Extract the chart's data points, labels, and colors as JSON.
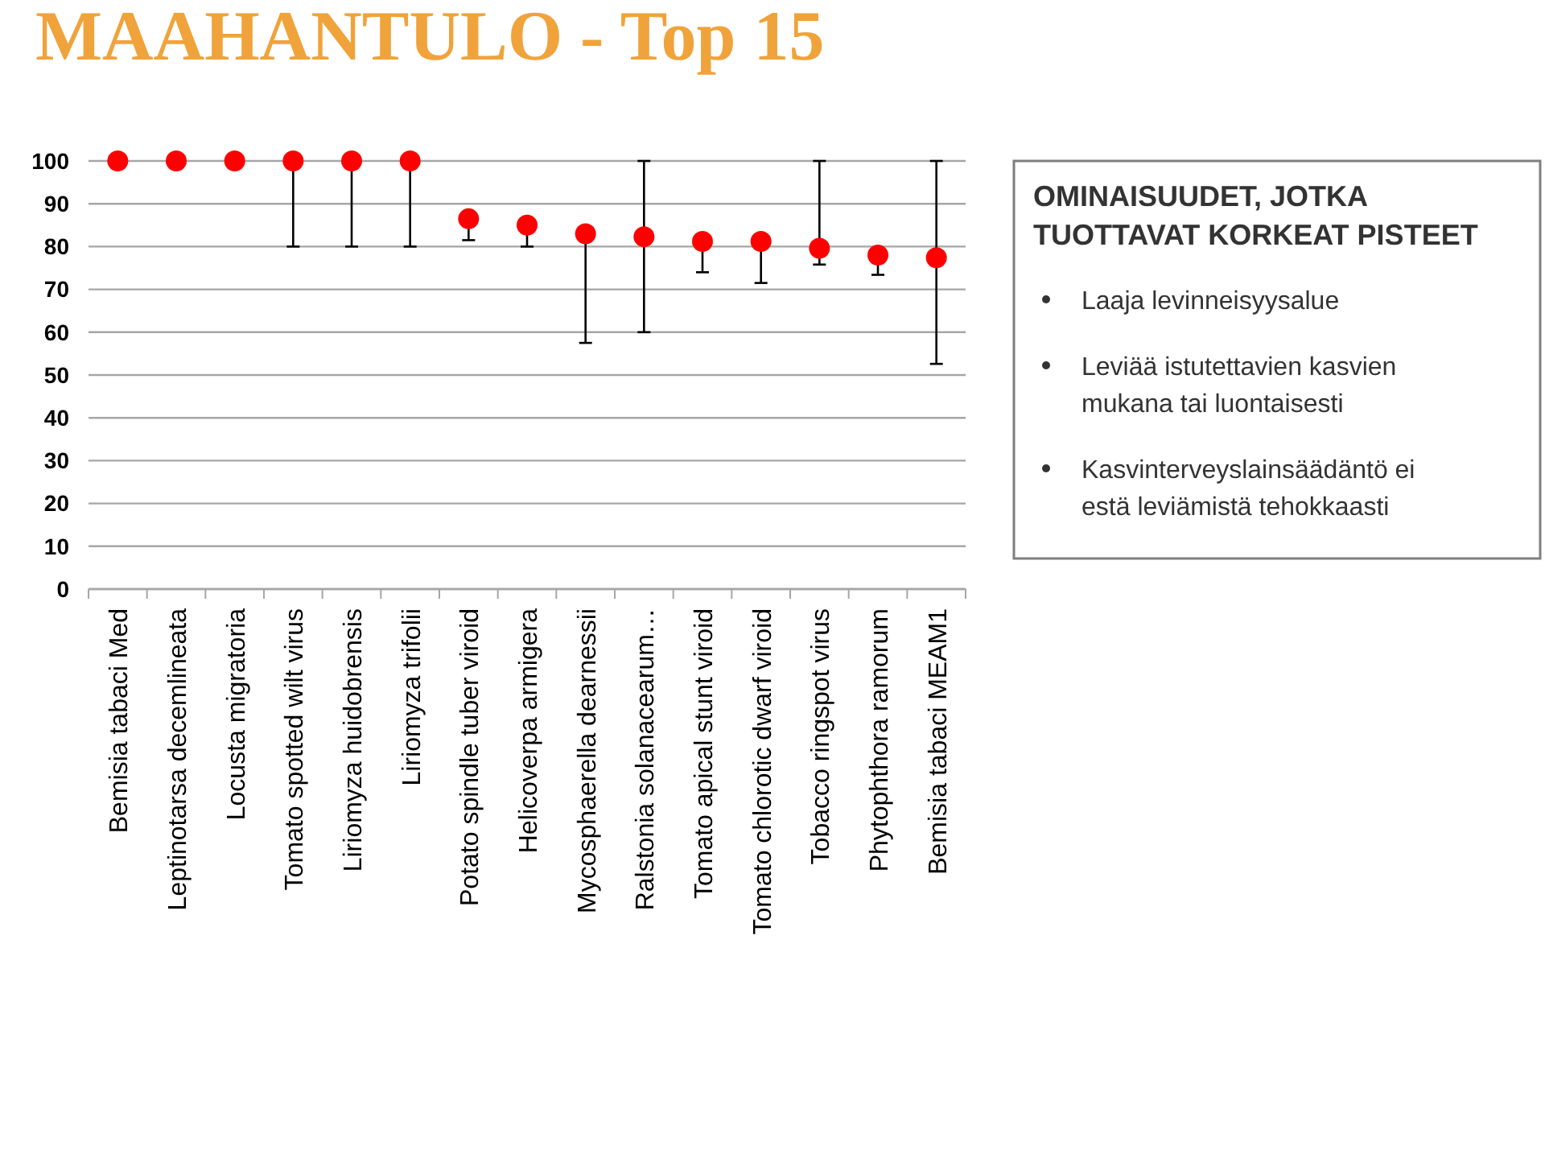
{
  "chart_data": {
    "type": "scatter",
    "title": "MAAHANTULO  - Top 15",
    "categories": [
      "Bemisia tabaci Med",
      "Leptinotarsa decemlineata",
      "Locusta migratoria",
      "Tomato spotted wilt virus",
      "Liriomyza huidobrensis",
      "Liriomyza trifolii",
      "Potato spindle tuber viroid",
      "Helicoverpa armigera",
      "Mycosphaerella dearnessii",
      "Ralstonia solanacearum…",
      "Tomato apical stunt viroid",
      "Tomato chlorotic dwarf viroid",
      "Tobacco ringspot virus",
      "Phytophthora ramorum",
      "Bemisia tabaci MEAM1"
    ],
    "values": [
      100,
      100,
      100,
      100,
      100,
      100,
      86.5,
      85,
      83,
      82.3,
      81.2,
      81.2,
      79.6,
      78,
      77.4
    ],
    "errors": [
      null,
      null,
      null,
      [
        80,
        100
      ],
      [
        80,
        100
      ],
      [
        80,
        100
      ],
      [
        81.5,
        86.5
      ],
      [
        80,
        85
      ],
      [
        57.5,
        83
      ],
      [
        60,
        100
      ],
      [
        74,
        81.2
      ],
      [
        71.5,
        81.2
      ],
      [
        75.8,
        100
      ],
      [
        73.4,
        78
      ],
      [
        52.6,
        100
      ]
    ],
    "color": "#ff0000",
    "marker": "circle",
    "ylim": [
      0,
      100
    ],
    "yticks": [
      0,
      10,
      20,
      30,
      40,
      50,
      60,
      70,
      80,
      90,
      100
    ],
    "grid": "y",
    "annotations": [
      "OMINAISUUDET, JOTKA TUOTTAVAT KORKEAT PISTEET",
      "Laaja levinneisyysalue",
      "Leviää istutettavien kasvien mukana tai luontaisesti",
      "Kasvinterveyslainsäädäntö ei estä leviämistä tehokkaasti"
    ]
  }
}
